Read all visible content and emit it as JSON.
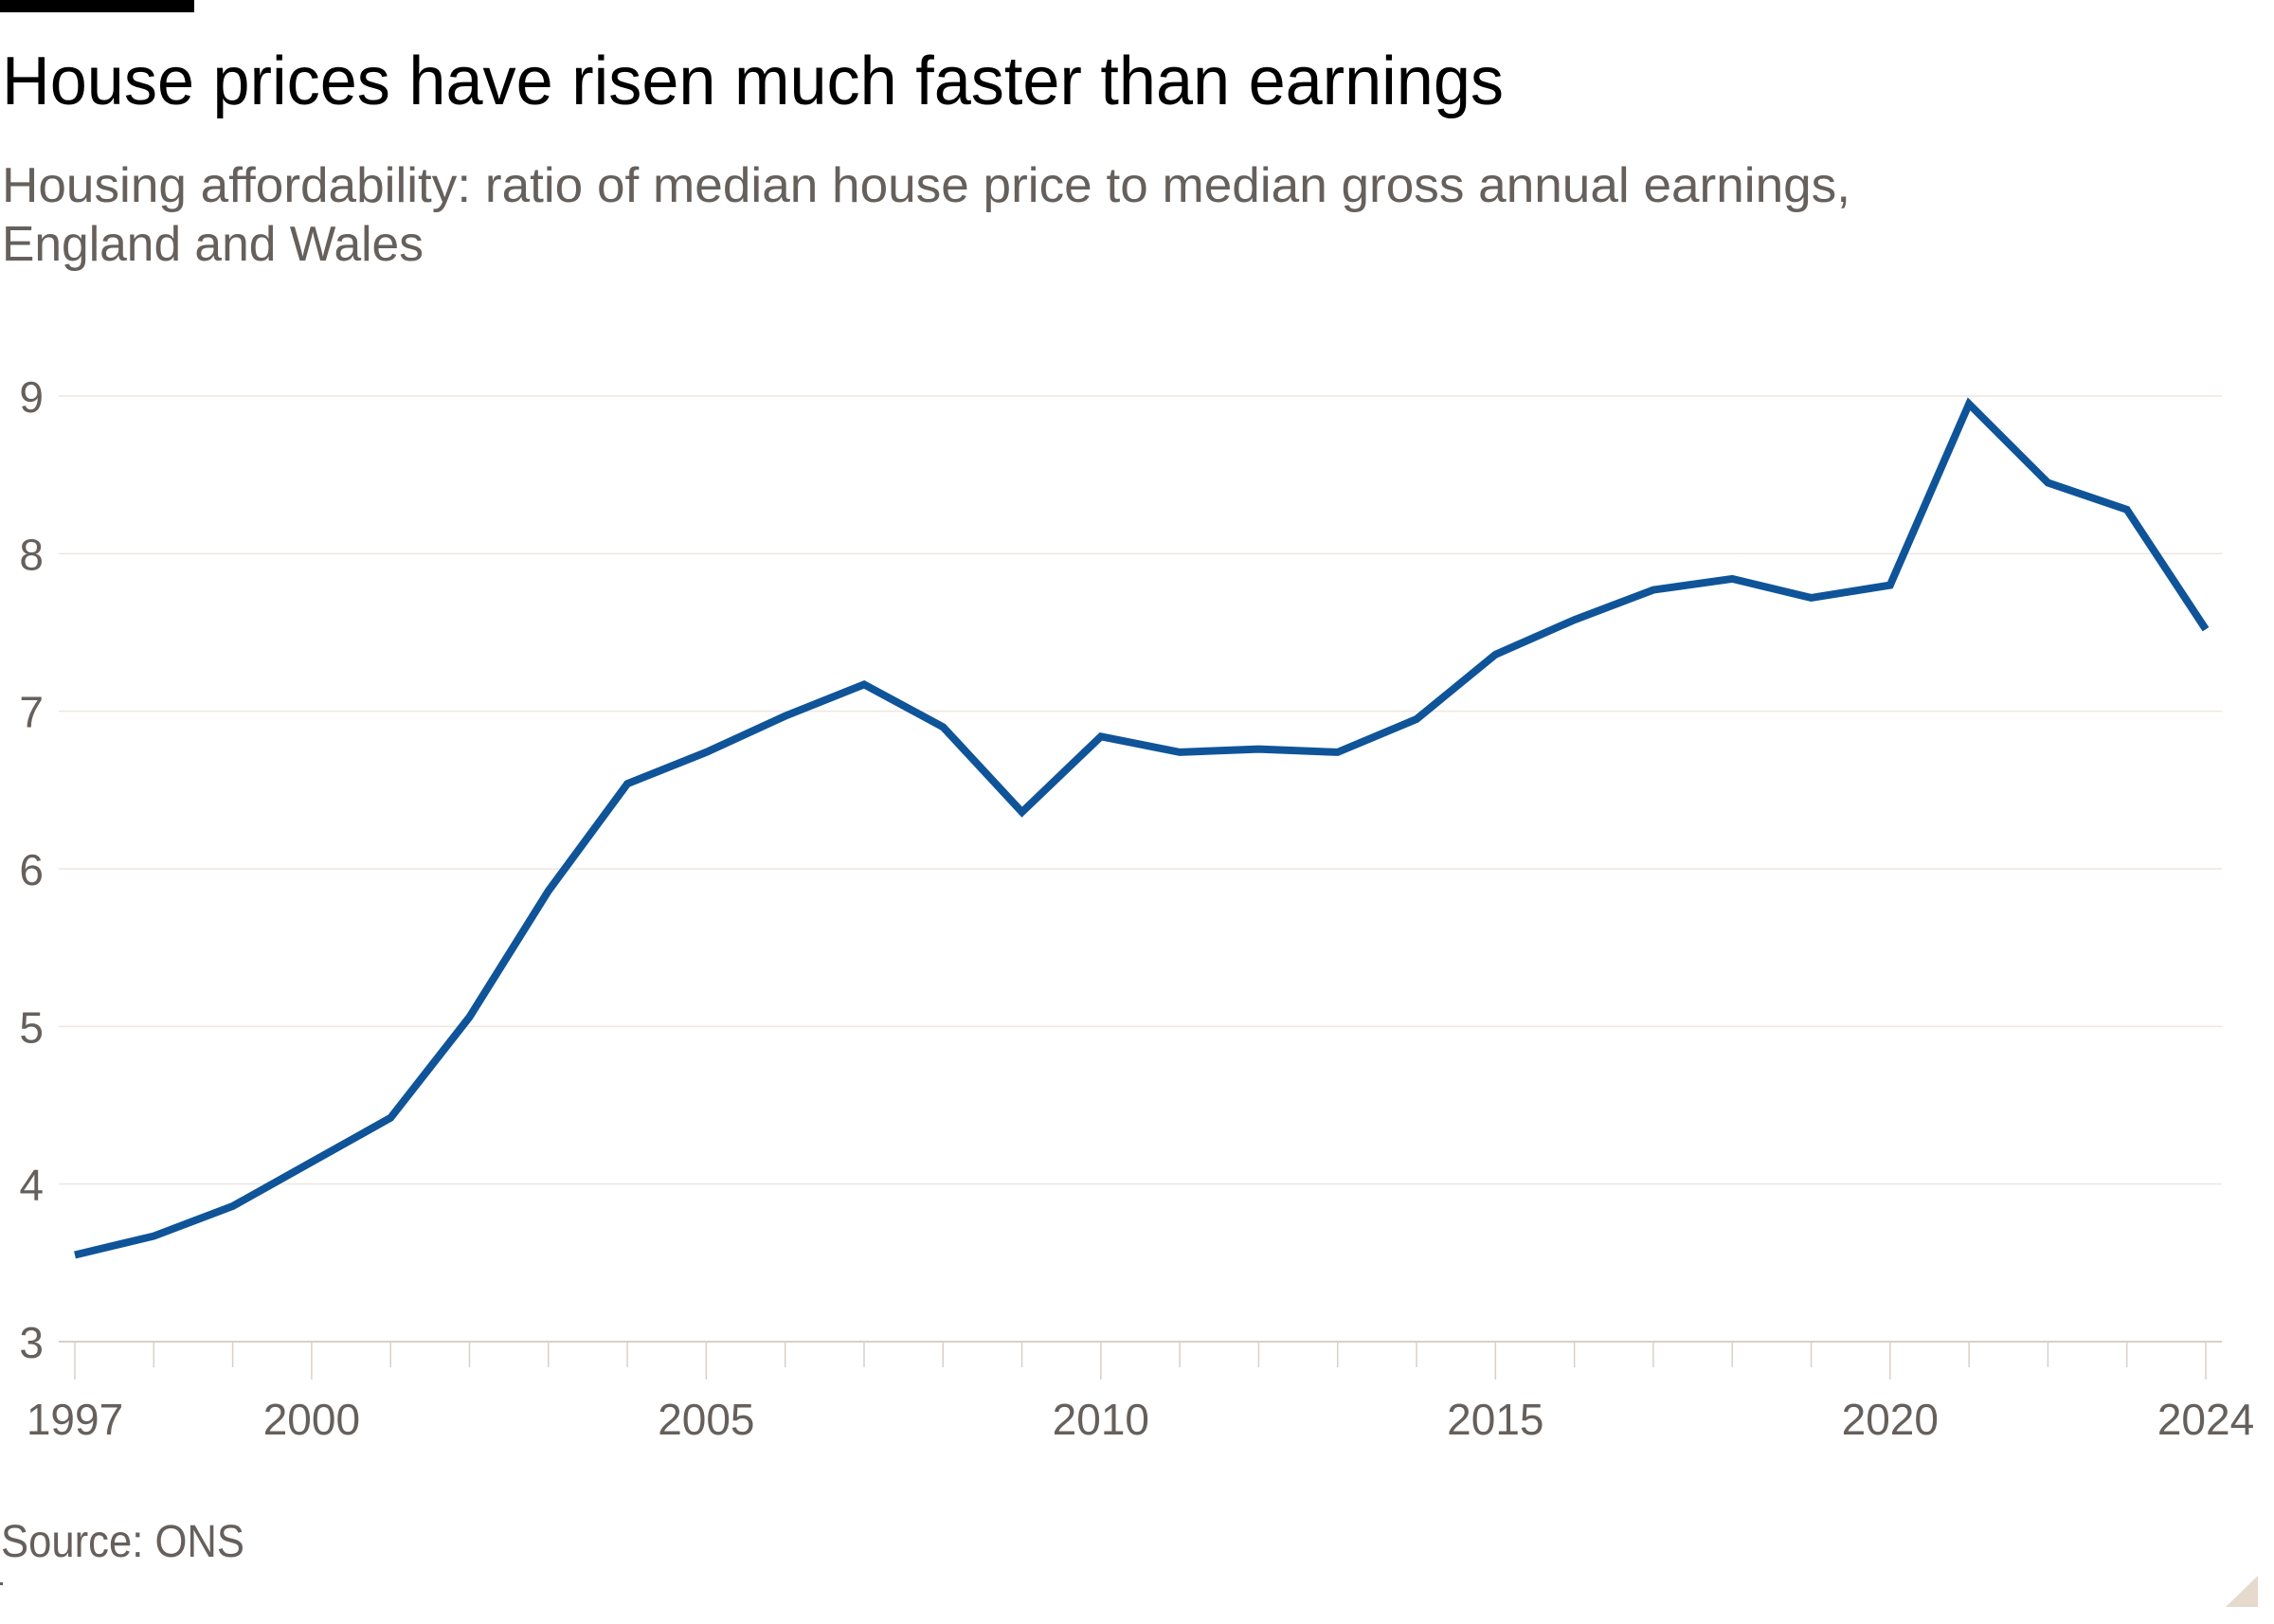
{
  "header": {
    "title": "House prices have risen much faster than earnings",
    "subtitle_lines": [
      "Housing affordability: ratio of median house price to median gross annual earnings,",
      "England and Wales"
    ]
  },
  "footer": {
    "source": "Source: ONS"
  },
  "colors": {
    "line": "#0f5499",
    "text_muted": "#66605c",
    "title": "#000000",
    "gridline": "#ede6df",
    "axis": "#d9d0c8",
    "corner": "#e6d9ce",
    "brand_bar": "#000000"
  },
  "chart_data": {
    "type": "line",
    "title": "House prices have risen much faster than earnings",
    "subtitle": "Housing affordability: ratio of median house price to median gross annual earnings, England and Wales",
    "xlabel": "",
    "ylabel": "",
    "xlim": [
      1997,
      2024
    ],
    "ylim": [
      3,
      9
    ],
    "grid": true,
    "legend": "none",
    "x_ticks": [
      1997,
      2000,
      2005,
      2010,
      2015,
      2020,
      2024
    ],
    "x_tick_labels": [
      "1997",
      "2000",
      "2005",
      "2010",
      "2015",
      "2020",
      "2024"
    ],
    "y_ticks": [
      3,
      4,
      5,
      6,
      7,
      8,
      9
    ],
    "y_tick_labels": [
      "3",
      "4",
      "5",
      "6",
      "7",
      "8",
      "9"
    ],
    "series": [
      {
        "name": "Ratio of median house price to median gross annual earnings",
        "x": [
          1997,
          1998,
          1999,
          2000,
          2001,
          2002,
          2003,
          2004,
          2005,
          2006,
          2007,
          2008,
          2009,
          2010,
          2011,
          2012,
          2013,
          2014,
          2015,
          2016,
          2017,
          2018,
          2019,
          2020,
          2021,
          2022,
          2023,
          2024
        ],
        "values": [
          3.55,
          3.67,
          3.86,
          4.14,
          4.42,
          5.06,
          5.86,
          6.54,
          6.74,
          6.97,
          7.17,
          6.9,
          6.36,
          6.84,
          6.74,
          6.76,
          6.74,
          6.95,
          7.36,
          7.58,
          7.77,
          7.84,
          7.72,
          7.8,
          8.95,
          8.45,
          8.28,
          7.52
        ]
      }
    ],
    "source": "Source: ONS"
  }
}
